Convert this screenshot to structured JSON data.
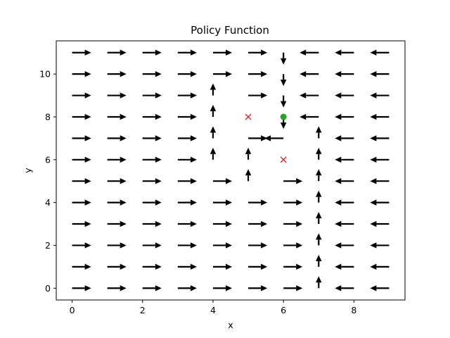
{
  "chart_data": {
    "type": "quiver",
    "title": "Policy Function",
    "xlabel": "x",
    "ylabel": "y",
    "xlim": [
      -0.45,
      9.45
    ],
    "ylim": [
      -0.55,
      11.55
    ],
    "xticks": [
      0,
      2,
      4,
      6,
      8
    ],
    "yticks": [
      0,
      2,
      4,
      6,
      8,
      10
    ],
    "grid": false,
    "grid_size": {
      "cols": 10,
      "rows": 12
    },
    "arrow_color": "#000000",
    "default_direction_by_column": [
      "right",
      "right",
      "right",
      "right",
      "right",
      "right",
      "left",
      "left",
      "left",
      "left"
    ],
    "direction_overrides": [
      {
        "x": 4,
        "y": 6,
        "dir": "up"
      },
      {
        "x": 4,
        "y": 7,
        "dir": "up"
      },
      {
        "x": 4,
        "y": 8,
        "dir": "up"
      },
      {
        "x": 4,
        "y": 9,
        "dir": "up"
      },
      {
        "x": 5,
        "y": 5,
        "dir": "up"
      },
      {
        "x": 5,
        "y": 6,
        "dir": "up"
      },
      {
        "x": 6,
        "y": 11,
        "dir": "down"
      },
      {
        "x": 6,
        "y": 10,
        "dir": "down"
      },
      {
        "x": 6,
        "y": 9,
        "dir": "down"
      },
      {
        "x": 6,
        "y": 8,
        "dir": "down"
      },
      {
        "x": 6,
        "y": 5,
        "dir": "right"
      },
      {
        "x": 6,
        "y": 4,
        "dir": "right"
      },
      {
        "x": 6,
        "y": 3,
        "dir": "right"
      },
      {
        "x": 6,
        "y": 2,
        "dir": "right"
      },
      {
        "x": 6,
        "y": 1,
        "dir": "right"
      },
      {
        "x": 6,
        "y": 0,
        "dir": "right"
      },
      {
        "x": 7,
        "y": 0,
        "dir": "up"
      },
      {
        "x": 7,
        "y": 1,
        "dir": "up"
      },
      {
        "x": 7,
        "y": 2,
        "dir": "up"
      },
      {
        "x": 7,
        "y": 3,
        "dir": "up"
      },
      {
        "x": 7,
        "y": 4,
        "dir": "up"
      },
      {
        "x": 7,
        "y": 5,
        "dir": "up"
      },
      {
        "x": 7,
        "y": 6,
        "dir": "up"
      },
      {
        "x": 7,
        "y": 7,
        "dir": "up"
      }
    ],
    "hidden_arrows": [
      {
        "x": 5,
        "y": 8
      },
      {
        "x": 6,
        "y": 6
      }
    ],
    "obstacles": [
      {
        "x": 5,
        "y": 8,
        "marker": "x",
        "color": "#d62728"
      },
      {
        "x": 6,
        "y": 6,
        "marker": "x",
        "color": "#d62728"
      }
    ],
    "goal": {
      "x": 6,
      "y": 8,
      "marker": "o",
      "color": "#2ca02c"
    }
  }
}
